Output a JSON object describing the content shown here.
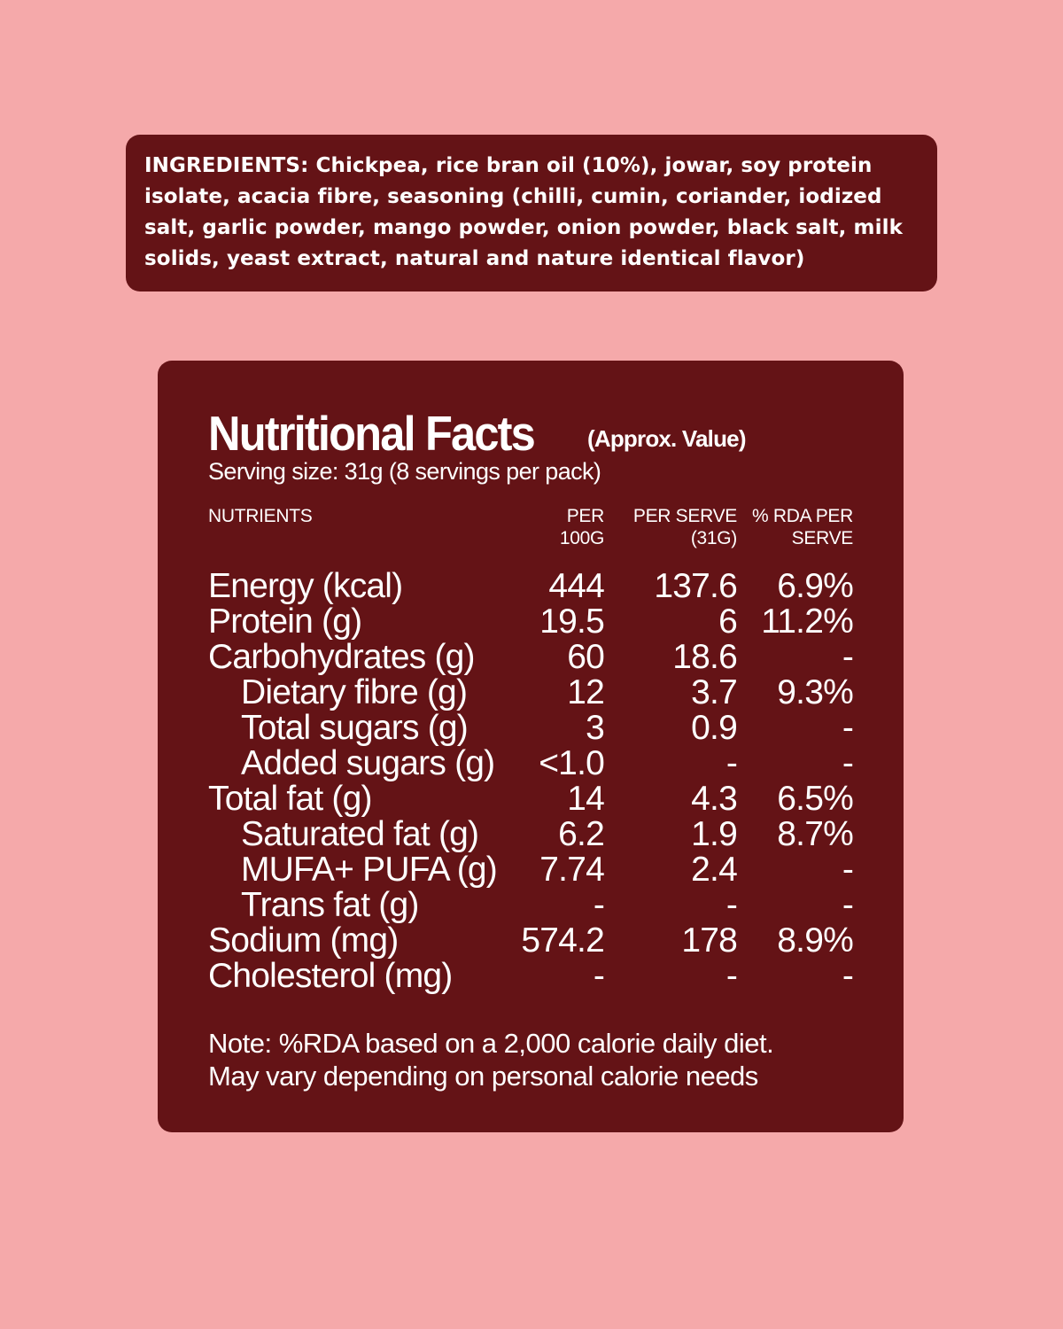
{
  "colors": {
    "background": "#f5a9aa",
    "panel": "#641316",
    "text": "#ffffff"
  },
  "ingredients": {
    "label": "Ingredients:",
    "text": "Chickpea, rice bran oil (10%), jowar, soy protein isolate, acacia fibre, seasoning (chilli, cumin, coriander, iodized salt, garlic powder, mango powder, onion powder, black salt, milk solids, yeast extract, natural and nature identical flavor)"
  },
  "nutrition": {
    "title": "Nutritional Facts",
    "subtitle": "(Approx. Value)",
    "serving": "Serving size: 31g (8 servings per pack)",
    "headers": {
      "nutrients": "Nutrients",
      "per100_line1": "Per",
      "per100_line2": "100g",
      "perserve_line1": "Per serve",
      "perserve_line2": "(31g)",
      "rda_line1": "% RDA per",
      "rda_line2": "serve"
    },
    "rows": [
      {
        "name": "Energy (kcal)",
        "per100": "444",
        "perserve": "137.6",
        "rda": "6.9%",
        "indent": false
      },
      {
        "name": "Protein (g)",
        "per100": "19.5",
        "perserve": "6",
        "rda": "11.2%",
        "indent": false
      },
      {
        "name": "Carbohydrates (g)",
        "per100": "60",
        "perserve": "18.6",
        "rda": "-",
        "indent": false
      },
      {
        "name": "Dietary fibre (g)",
        "per100": "12",
        "perserve": "3.7",
        "rda": "9.3%",
        "indent": true
      },
      {
        "name": "Total sugars (g)",
        "per100": "3",
        "perserve": "0.9",
        "rda": "-",
        "indent": true
      },
      {
        "name": "Added sugars (g)",
        "per100": "<1.0",
        "perserve": "-",
        "rda": "-",
        "indent": true
      },
      {
        "name": "Total fat (g)",
        "per100": "14",
        "perserve": "4.3",
        "rda": "6.5%",
        "indent": false
      },
      {
        "name": "Saturated fat (g)",
        "per100": "6.2",
        "perserve": "1.9",
        "rda": "8.7%",
        "indent": true
      },
      {
        "name": "MUFA+ PUFA (g)",
        "per100": "7.74",
        "perserve": "2.4",
        "rda": "-",
        "indent": true
      },
      {
        "name": "Trans fat (g)",
        "per100": "-",
        "perserve": "-",
        "rda": "-",
        "indent": true
      },
      {
        "name": "Sodium (mg)",
        "per100": "574.2",
        "perserve": "178",
        "rda": "8.9%",
        "indent": false
      },
      {
        "name": "Cholesterol (mg)",
        "per100": "-",
        "perserve": "-",
        "rda": "-",
        "indent": false
      }
    ],
    "note_line1": "Note: %RDA based on a 2,000 calorie daily diet.",
    "note_line2": "May vary depending on personal calorie needs"
  }
}
